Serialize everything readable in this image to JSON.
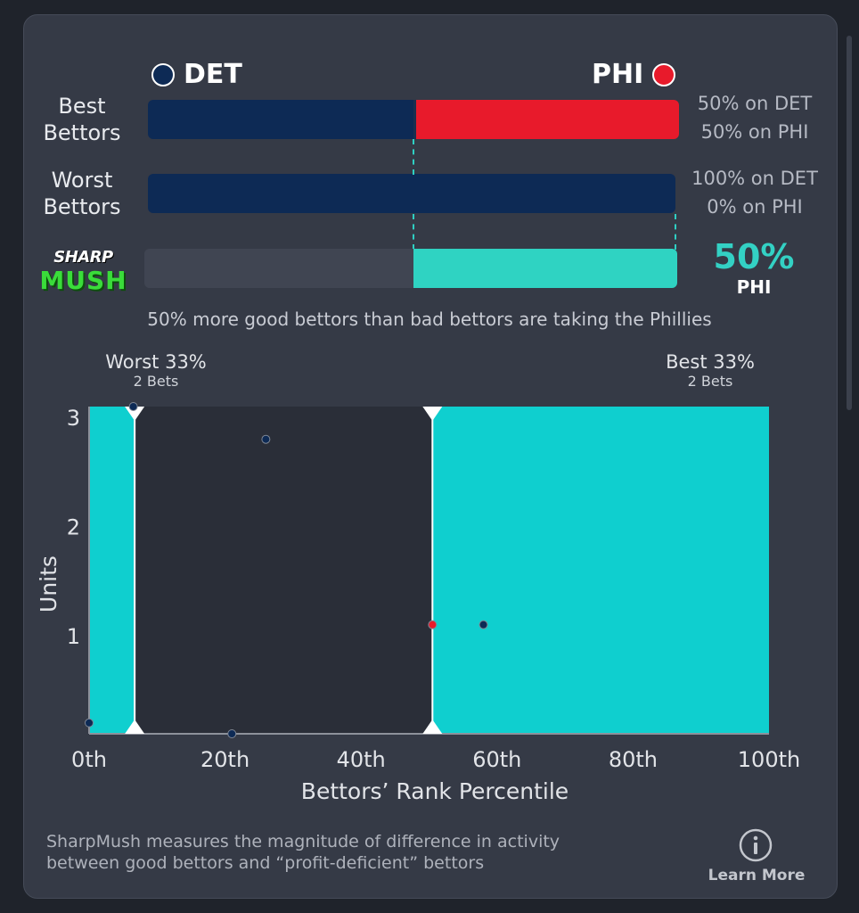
{
  "teams": {
    "away": {
      "abbr": "DET",
      "color": "#0d2a55"
    },
    "home": {
      "abbr": "PHI",
      "color": "#e81a2b"
    }
  },
  "best_bettors": {
    "label_line1": "Best",
    "label_line2": "Bettors",
    "away_fraction": 0.5,
    "away_pct_text": "50% on DET",
    "home_pct_text": "50% on PHI"
  },
  "worst_bettors": {
    "label_line1": "Worst",
    "label_line2": "Bettors",
    "away_fraction": 1.0,
    "away_pct_text": "100% on DET",
    "home_pct_text": "0% on PHI"
  },
  "sharpmush": {
    "logo_top": "SHARP",
    "logo_bottom": "MUSH",
    "value_text": "50%",
    "team": "PHI",
    "value_fraction": 0.5,
    "accent": "#2fd3c2"
  },
  "summary_text": "50% more good bettors than bad bettors are taking the Phillies",
  "groups": {
    "worst": {
      "label": "Worst 33%",
      "sub": "2 Bets"
    },
    "best": {
      "label": "Best 33%",
      "sub": "2 Bets"
    }
  },
  "chart_data": {
    "type": "scatter",
    "xlabel": "Bettors’ Rank Percentile",
    "ylabel": "Units",
    "xlim": [
      0,
      100
    ],
    "ylim": [
      0.1,
      3.1
    ],
    "x_ticks": [
      "0th",
      "20th",
      "40th",
      "60th",
      "80th",
      "100th"
    ],
    "x_tick_values": [
      0,
      20,
      40,
      60,
      80,
      100
    ],
    "y_ticks": [
      1,
      2,
      3
    ],
    "shaded_regions": [
      {
        "name": "Worst 33%",
        "x_start": 0,
        "x_end": 6.7
      },
      {
        "name": "Best 33%",
        "x_start": 50.5,
        "x_end": 100
      }
    ],
    "points": [
      {
        "x": 0,
        "y": 0.2,
        "team": "DET"
      },
      {
        "x": 6.5,
        "y": 3.1,
        "team": "DET"
      },
      {
        "x": 21,
        "y": 0.1,
        "team": "DET"
      },
      {
        "x": 26,
        "y": 2.8,
        "team": "DET"
      },
      {
        "x": 50.5,
        "y": 1.1,
        "team": "PHI"
      },
      {
        "x": 58,
        "y": 1.1,
        "team": "DET"
      }
    ],
    "region_color": "#0fcfcf"
  },
  "footer": {
    "text_line1": "SharpMush measures the magnitude of difference in activity",
    "text_line2": "between good bettors and “profit-deficient” bettors",
    "learn_more": "Learn More",
    "info_icon": "info-icon"
  }
}
